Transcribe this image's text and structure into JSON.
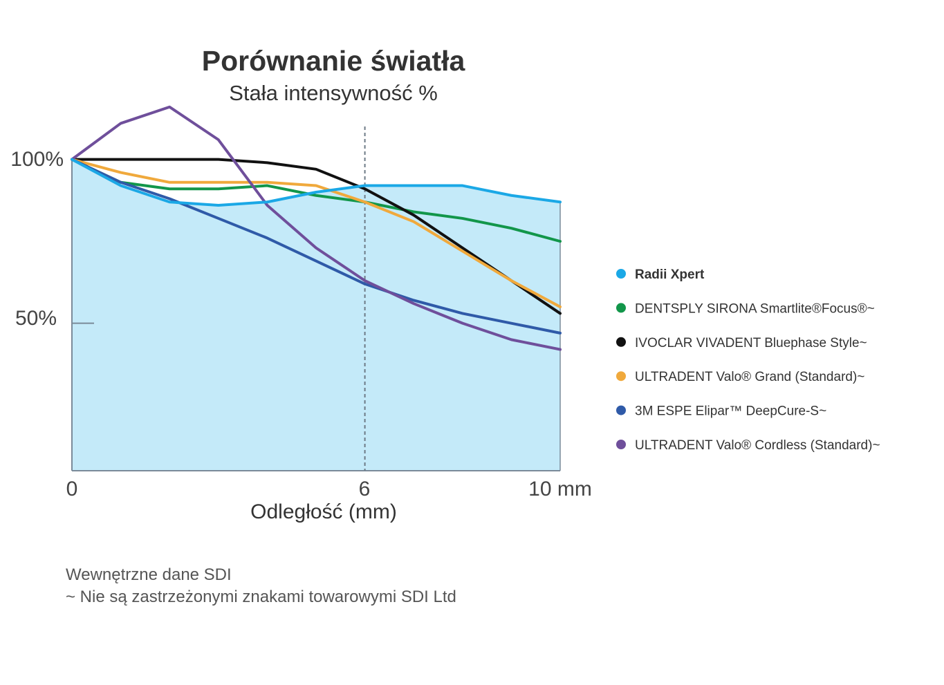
{
  "chart_data": {
    "type": "line",
    "title": "Porównanie światła",
    "subtitle": "Stała intensywność %",
    "xlabel": "Odległość (mm)",
    "x_ticks": [
      "0",
      "6",
      "10 mm"
    ],
    "y_ticks": [
      "100%",
      "50%"
    ],
    "xlim": [
      0,
      10
    ],
    "ylim": [
      5,
      117
    ],
    "reference_line_x": 6,
    "legend_position": "right",
    "x": [
      0,
      1,
      2,
      3,
      4,
      5,
      6,
      7,
      8,
      9,
      10
    ],
    "series": [
      {
        "name": "Radii Xpert",
        "color": "#1ba8e6",
        "bold": true,
        "filled": true,
        "values": [
          100,
          92,
          87,
          86,
          87,
          90,
          92,
          92,
          92,
          89,
          87
        ]
      },
      {
        "name": "DENTSPLY SIRONA Smartlite®Focus®~",
        "color": "#12964a",
        "values": [
          100,
          93,
          91,
          91,
          92,
          89,
          87,
          84,
          82,
          79,
          75
        ]
      },
      {
        "name": "IVOCLAR VIVADENT Bluephase Style~",
        "color": "#111111",
        "values": [
          100,
          100,
          100,
          100,
          99,
          97,
          91,
          83,
          73,
          63,
          53
        ]
      },
      {
        "name": "ULTRADENT Valo® Grand (Standard)~",
        "color": "#f0a93c",
        "values": [
          100,
          96,
          93,
          93,
          93,
          92,
          87,
          81,
          72,
          63,
          55
        ]
      },
      {
        "name": "3M ESPE Elipar™ DeepCure-S~",
        "color": "#2f5aa8",
        "values": [
          100,
          93,
          88,
          82,
          76,
          69,
          62,
          57,
          53,
          50,
          47
        ]
      },
      {
        "name": "ULTRADENT Valo® Cordless (Standard)~",
        "color": "#6f4f9b",
        "values": [
          100,
          111,
          116,
          106,
          86,
          73,
          63,
          56,
          50,
          45,
          42
        ]
      }
    ],
    "fill_color": "#c4eaf9"
  },
  "footnotes": [
    "Wewnętrzne dane SDI",
    "~ Nie są zastrzeżonymi znakami towarowymi SDI Ltd"
  ]
}
